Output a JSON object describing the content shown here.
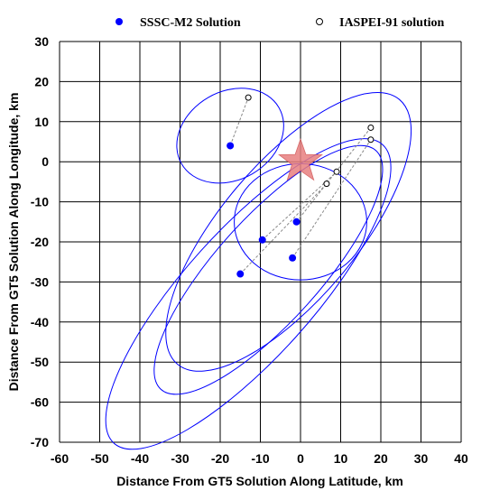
{
  "chart_data": {
    "type": "scatter",
    "title": "",
    "xlabel": "Distance From GT5 Solution Along Latitude, km",
    "ylabel": "Distance From GT5 Solution Along Longitude, km",
    "xlim": [
      -60,
      40
    ],
    "ylim": [
      -70,
      30
    ],
    "xticks": [
      -60,
      -50,
      -40,
      -30,
      -20,
      -10,
      0,
      10,
      20,
      30,
      40
    ],
    "yticks": [
      -70,
      -60,
      -50,
      -40,
      -30,
      -20,
      -10,
      0,
      10,
      20,
      30
    ],
    "grid": true,
    "legend_position": "top",
    "legend": [
      {
        "label": "SSSC-M2 Solution",
        "marker": "filled-circle",
        "color": "#0000ff"
      },
      {
        "label": "IASPEI-91 solution",
        "marker": "open-circle",
        "color": "#000000"
      }
    ],
    "reference": {
      "name": "GT5",
      "marker": "star",
      "x": 0,
      "y": 0,
      "color": "#e88080"
    },
    "series": [
      {
        "name": "SSSC-M2 Solution",
        "points": [
          [
            -17.5,
            4
          ],
          [
            -9.5,
            -19.5
          ],
          [
            -1,
            -15
          ],
          [
            -15,
            -28
          ],
          [
            -2,
            -24
          ]
        ]
      },
      {
        "name": "IASPEI-91 solution",
        "points": [
          [
            -13,
            16
          ],
          [
            9,
            -2.5
          ],
          [
            17.5,
            8.5
          ],
          [
            17.5,
            5.5
          ],
          [
            6.5,
            -5.5
          ]
        ]
      }
    ],
    "links": [
      [
        [
          -17.5,
          4
        ],
        [
          -13,
          16
        ]
      ],
      [
        [
          -9.5,
          -19.5
        ],
        [
          9,
          -2.5
        ]
      ],
      [
        [
          -1,
          -15
        ],
        [
          17.5,
          8.5
        ]
      ],
      [
        [
          -15,
          -28
        ],
        [
          6.5,
          -5.5
        ]
      ],
      [
        [
          -2,
          -24
        ],
        [
          17.5,
          5.5
        ]
      ]
    ],
    "ellipses": [
      {
        "cx": -17.5,
        "cy": 6.5,
        "rx": 14,
        "ry": 11,
        "rotation": 30
      },
      {
        "cx": 0,
        "cy": -15,
        "rx": 16.5,
        "ry": 14.5,
        "rotation": 0
      },
      {
        "cx": -3,
        "cy": -17.5,
        "rx": 43,
        "ry": 17,
        "rotation": 50
      },
      {
        "cx": -8,
        "cy": -27,
        "rx": 40,
        "ry": 13,
        "rotation": 48
      },
      {
        "cx": -13,
        "cy": -33,
        "rx": 50,
        "ry": 16,
        "rotation": 48
      }
    ],
    "colors": {
      "solution": "#0000ff",
      "ellipse": "#0000ff",
      "link": "#888888",
      "grid": "#000000"
    }
  }
}
